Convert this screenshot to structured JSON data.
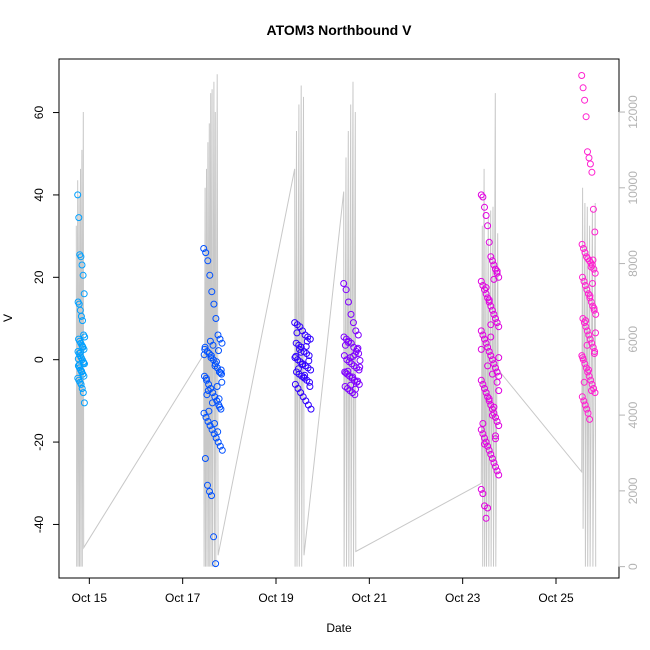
{
  "chart_data": {
    "type": "scatter",
    "title": "ATOM3 Northbound V",
    "xlabel": "Date",
    "ylabel": "V",
    "x_ticks": [
      "Oct 15",
      "Oct 17",
      "Oct 19",
      "Oct 21",
      "Oct 23",
      "Oct 25"
    ],
    "x_tick_days": [
      15,
      17,
      19,
      21,
      23,
      25
    ],
    "xlim_days": [
      14.35,
      26.35
    ],
    "ylim": [
      -53,
      73
    ],
    "y_ticks": [
      -40,
      -20,
      0,
      20,
      40,
      60
    ],
    "y2_ticks": [
      0,
      2000,
      4000,
      6000,
      8000,
      10000,
      12000
    ],
    "y2lim": [
      -300,
      13400
    ],
    "grid": false,
    "legend": "none",
    "colors": {
      "c1": "#00a0ff",
      "c2": "#0050ff",
      "c3": "#3000ff",
      "c4": "#8000ff",
      "c5": "#e000e0",
      "c6": "#ff20d0",
      "count_line": "#c8c8c8",
      "right_axis": "#b3b3b3"
    },
    "clusters": [
      {
        "color": "c1",
        "day_start": 14.75,
        "day_end": 14.9,
        "values": [
          40,
          34.5,
          25.5,
          25,
          23,
          20.5,
          16,
          14,
          13.5,
          12,
          10.5,
          9.5,
          6,
          5.5,
          5,
          4.5,
          4,
          3.5,
          3,
          2.5,
          2,
          1.5,
          1,
          0.5,
          0,
          -0.5,
          -1,
          -1.5,
          -2,
          -2.5,
          -3,
          -3.5,
          -4,
          -4.5,
          -5,
          -5.5,
          -6,
          -7,
          -8,
          -10.5,
          0.2,
          -1.2,
          1.8,
          -2.8,
          3.2,
          -0.8
        ]
      },
      {
        "color": "c2",
        "day_start": 17.45,
        "day_end": 17.85,
        "values": [
          27,
          26,
          24,
          20.5,
          16.5,
          13.5,
          10,
          6,
          5,
          4,
          3,
          2,
          1.5,
          1,
          0,
          -1,
          -2,
          -3,
          -3.5,
          -4,
          -5,
          -6,
          -7,
          -8,
          -9,
          -10,
          -11,
          -12,
          -13,
          -14,
          -15,
          -16,
          -17,
          -18,
          -19,
          -20,
          -21,
          -22,
          -24,
          -30.5,
          -32,
          -33,
          -43,
          -49.5,
          -17.5,
          -11.5,
          -5.5,
          2.5,
          -8.5,
          -12.5,
          0.5,
          3.5,
          -1.5,
          -6.5,
          -9.5,
          -2.5,
          1.2,
          -4.5,
          -7.5,
          4.5,
          -10.5,
          -15.5,
          -0.5,
          2.2,
          -3.2
        ]
      },
      {
        "color": "c3",
        "day_start": 19.4,
        "day_end": 19.75,
        "values": [
          9,
          8.5,
          8,
          7,
          6,
          5.5,
          5,
          4,
          3.5,
          3,
          2,
          1.5,
          1,
          0.5,
          0,
          -0.5,
          -1,
          -1.5,
          -2,
          -2.5,
          -3,
          -3.5,
          -4,
          -4.5,
          -5,
          -5.5,
          -6,
          -7,
          -8,
          -9,
          -10,
          -11,
          -12,
          6.5,
          2.5,
          -1.2,
          -3.8,
          4.5,
          -6.5,
          0.8,
          -2.2,
          1.8,
          -4.2,
          3.2,
          -0.3
        ]
      },
      {
        "color": "c4",
        "day_start": 20.45,
        "day_end": 20.8,
        "values": [
          18.5,
          17,
          14,
          11,
          9,
          7,
          6,
          5.5,
          5,
          4.5,
          4,
          3,
          2,
          1.5,
          1,
          0,
          -0.5,
          -1,
          -1.5,
          -2,
          -2.5,
          -3,
          -3.5,
          -4,
          -4.5,
          -5,
          -5.5,
          -6,
          -6.5,
          -7,
          -7.5,
          -8,
          -8.5,
          2.5,
          -1.8,
          3.5,
          -2.8,
          0.5,
          -4.2,
          1.2,
          -5.2,
          -0.2,
          -3.2,
          4.2,
          -6.2,
          0.8,
          -7.2,
          2.8
        ]
      },
      {
        "color": "c5",
        "day_start": 23.4,
        "day_end": 23.8,
        "values": [
          40,
          39.5,
          37,
          35,
          32.5,
          28.5,
          25,
          24,
          23,
          22,
          21,
          20,
          19,
          18,
          17,
          16,
          15,
          14,
          13,
          12,
          11,
          10,
          9,
          8,
          7,
          6,
          5,
          4,
          3,
          2,
          1,
          0,
          -1,
          -2,
          -3,
          -4,
          -5,
          -6,
          -7,
          -8,
          -9,
          -10,
          -11,
          -12,
          -13,
          -14,
          -15,
          -16,
          -17,
          -18,
          -19,
          -20,
          -21,
          -22,
          -23,
          -24,
          -25,
          -26,
          -27,
          -28,
          -31.5,
          -32.5,
          -35.5,
          -38.5,
          -36,
          14.5,
          8.5,
          -3.5,
          -11.5,
          -18.5,
          21.5,
          -7.5,
          2.5,
          -15.5,
          -20.5,
          17.5,
          -1.5,
          -9.5,
          5.5,
          -13.5,
          19.5,
          -19.2,
          -5.5,
          0.5
        ]
      },
      {
        "color": "c6",
        "day_start": 25.55,
        "day_end": 25.85,
        "values": [
          69,
          66,
          63,
          59,
          50.5,
          49,
          47.5,
          45.5,
          36.5,
          31,
          28,
          27,
          26,
          25,
          24.5,
          24,
          23.5,
          23,
          22,
          21,
          20,
          19,
          18,
          17,
          16,
          15,
          14,
          13,
          12,
          11,
          10,
          9,
          8,
          7,
          6,
          5,
          4,
          3,
          2,
          1,
          0,
          -1,
          -2,
          -3,
          -4,
          -5,
          -6,
          -7,
          -8,
          -9,
          -10,
          -11,
          -12,
          -13,
          -14.5,
          22.5,
          18.5,
          12.5,
          6.5,
          0.5,
          -5.5,
          9.5,
          3.5,
          -2.5,
          15.5,
          -7.5,
          24.2,
          1.5
        ]
      }
    ],
    "count_series": [
      {
        "day": 14.72,
        "v": 9000
      },
      {
        "day": 14.73,
        "v": 0
      },
      {
        "day": 14.75,
        "v": 10200
      },
      {
        "day": 14.76,
        "v": 0
      },
      {
        "day": 14.78,
        "v": 9800
      },
      {
        "day": 14.79,
        "v": 0
      },
      {
        "day": 14.81,
        "v": 10500
      },
      {
        "day": 14.82,
        "v": 0
      },
      {
        "day": 14.84,
        "v": 11000
      },
      {
        "day": 14.85,
        "v": 0
      },
      {
        "day": 14.87,
        "v": 12000
      },
      {
        "day": 14.88,
        "v": 500
      },
      {
        "day": 17.45,
        "v": 5600
      },
      {
        "day": 17.46,
        "v": 0
      },
      {
        "day": 17.48,
        "v": 10000
      },
      {
        "day": 17.49,
        "v": 0
      },
      {
        "day": 17.51,
        "v": 10500
      },
      {
        "day": 17.52,
        "v": 0
      },
      {
        "day": 17.54,
        "v": 11200
      },
      {
        "day": 17.55,
        "v": 0
      },
      {
        "day": 17.57,
        "v": 11700
      },
      {
        "day": 17.58,
        "v": 0
      },
      {
        "day": 17.6,
        "v": 12500
      },
      {
        "day": 17.61,
        "v": 0
      },
      {
        "day": 17.63,
        "v": 12600
      },
      {
        "day": 17.64,
        "v": 0
      },
      {
        "day": 17.67,
        "v": 12800
      },
      {
        "day": 17.68,
        "v": 0
      },
      {
        "day": 17.7,
        "v": 12000
      },
      {
        "day": 17.71,
        "v": 0
      },
      {
        "day": 17.74,
        "v": 13000
      },
      {
        "day": 17.76,
        "v": 300
      },
      {
        "day": 19.4,
        "v": 10500
      },
      {
        "day": 19.41,
        "v": 0
      },
      {
        "day": 19.44,
        "v": 11500
      },
      {
        "day": 19.45,
        "v": 0
      },
      {
        "day": 19.49,
        "v": 12200
      },
      {
        "day": 19.5,
        "v": 0
      },
      {
        "day": 19.54,
        "v": 12700
      },
      {
        "day": 19.55,
        "v": 0
      },
      {
        "day": 19.59,
        "v": 12400
      },
      {
        "day": 19.6,
        "v": 300
      },
      {
        "day": 20.45,
        "v": 9900
      },
      {
        "day": 20.46,
        "v": 0
      },
      {
        "day": 20.5,
        "v": 10800
      },
      {
        "day": 20.51,
        "v": 0
      },
      {
        "day": 20.55,
        "v": 11500
      },
      {
        "day": 20.56,
        "v": 0
      },
      {
        "day": 20.6,
        "v": 12200
      },
      {
        "day": 20.61,
        "v": 0
      },
      {
        "day": 20.65,
        "v": 12800
      },
      {
        "day": 20.66,
        "v": 0
      },
      {
        "day": 20.7,
        "v": 12000
      },
      {
        "day": 20.71,
        "v": 400
      },
      {
        "day": 23.4,
        "v": 2200
      },
      {
        "day": 23.42,
        "v": 9000
      },
      {
        "day": 23.43,
        "v": 0
      },
      {
        "day": 23.46,
        "v": 10500
      },
      {
        "day": 23.47,
        "v": 0
      },
      {
        "day": 23.5,
        "v": 8500
      },
      {
        "day": 23.51,
        "v": 0
      },
      {
        "day": 23.55,
        "v": 9200
      },
      {
        "day": 23.56,
        "v": 0
      },
      {
        "day": 23.6,
        "v": 9400
      },
      {
        "day": 23.61,
        "v": 0
      },
      {
        "day": 23.65,
        "v": 9500
      },
      {
        "day": 23.66,
        "v": 0
      },
      {
        "day": 23.7,
        "v": 12500
      },
      {
        "day": 23.71,
        "v": 0
      },
      {
        "day": 23.75,
        "v": 8800
      },
      {
        "day": 23.76,
        "v": 5200
      },
      {
        "day": 25.55,
        "v": 2500
      },
      {
        "day": 25.57,
        "v": 10000
      },
      {
        "day": 25.58,
        "v": 1000
      },
      {
        "day": 25.62,
        "v": 9600
      },
      {
        "day": 25.63,
        "v": 0
      },
      {
        "day": 25.67,
        "v": 9500
      },
      {
        "day": 25.68,
        "v": 0
      },
      {
        "day": 25.72,
        "v": 9000
      },
      {
        "day": 25.73,
        "v": 0
      },
      {
        "day": 25.78,
        "v": 9400
      },
      {
        "day": 25.79,
        "v": 0
      },
      {
        "day": 25.84,
        "v": 9600
      },
      {
        "day": 25.85,
        "v": 0
      }
    ]
  }
}
